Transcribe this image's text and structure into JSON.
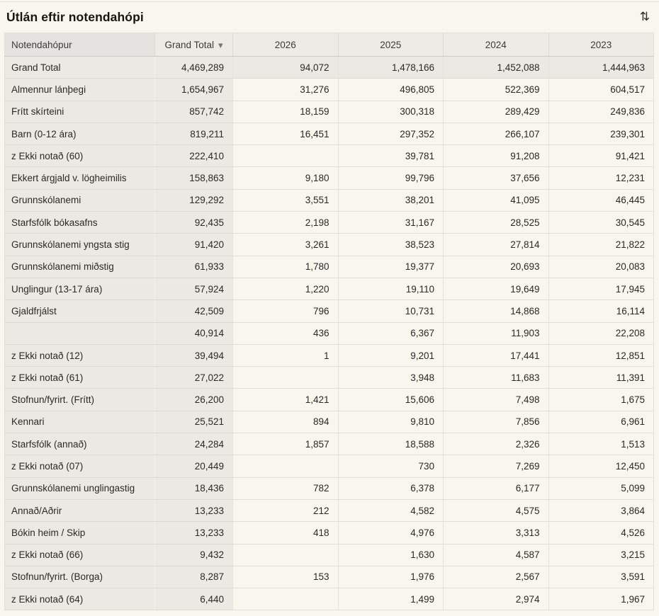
{
  "widget": {
    "title": "Útlán eftir notendahópi"
  },
  "icons": {
    "sort_toggle": "⇅",
    "sort_caret": "▼"
  },
  "table": {
    "headers": [
      "Notendahópur",
      "Grand Total",
      "2026",
      "2025",
      "2024",
      "2023"
    ],
    "sorted_by": "Grand Total",
    "rows": [
      {
        "is_total": true,
        "cells": [
          "Grand Total",
          "4,469,289",
          "94,072",
          "1,478,166",
          "1,452,088",
          "1,444,963"
        ]
      },
      {
        "is_total": false,
        "cells": [
          "Almennur lánþegi",
          "1,654,967",
          "31,276",
          "496,805",
          "522,369",
          "604,517"
        ]
      },
      {
        "is_total": false,
        "cells": [
          "Frítt skírteini",
          "857,742",
          "18,159",
          "300,318",
          "289,429",
          "249,836"
        ]
      },
      {
        "is_total": false,
        "cells": [
          "Barn (0-12 ára)",
          "819,211",
          "16,451",
          "297,352",
          "266,107",
          "239,301"
        ]
      },
      {
        "is_total": false,
        "cells": [
          "z Ekki notað (60)",
          "222,410",
          "",
          "39,781",
          "91,208",
          "91,421"
        ]
      },
      {
        "is_total": false,
        "cells": [
          "Ekkert árgjald v. lögheimilis",
          "158,863",
          "9,180",
          "99,796",
          "37,656",
          "12,231"
        ]
      },
      {
        "is_total": false,
        "cells": [
          "Grunnskólanemi",
          "129,292",
          "3,551",
          "38,201",
          "41,095",
          "46,445"
        ]
      },
      {
        "is_total": false,
        "cells": [
          "Starfsfólk bókasafns",
          "92,435",
          "2,198",
          "31,167",
          "28,525",
          "30,545"
        ]
      },
      {
        "is_total": false,
        "cells": [
          "Grunnskólanemi yngsta stig",
          "91,420",
          "3,261",
          "38,523",
          "27,814",
          "21,822"
        ]
      },
      {
        "is_total": false,
        "cells": [
          "Grunnskólanemi miðstig",
          "61,933",
          "1,780",
          "19,377",
          "20,693",
          "20,083"
        ]
      },
      {
        "is_total": false,
        "cells": [
          "Unglingur (13-17 ára)",
          "57,924",
          "1,220",
          "19,110",
          "19,649",
          "17,945"
        ]
      },
      {
        "is_total": false,
        "cells": [
          "Gjaldfrjálst",
          "42,509",
          "796",
          "10,731",
          "14,868",
          "16,114"
        ]
      },
      {
        "is_total": false,
        "cells": [
          "",
          "40,914",
          "436",
          "6,367",
          "11,903",
          "22,208"
        ]
      },
      {
        "is_total": false,
        "cells": [
          "z Ekki notað (12)",
          "39,494",
          "1",
          "9,201",
          "17,441",
          "12,851"
        ]
      },
      {
        "is_total": false,
        "cells": [
          "z Ekki notað (61)",
          "27,022",
          "",
          "3,948",
          "11,683",
          "11,391"
        ]
      },
      {
        "is_total": false,
        "cells": [
          "Stofnun/fyrirt. (Frítt)",
          "26,200",
          "1,421",
          "15,606",
          "7,498",
          "1,675"
        ]
      },
      {
        "is_total": false,
        "cells": [
          "Kennari",
          "25,521",
          "894",
          "9,810",
          "7,856",
          "6,961"
        ]
      },
      {
        "is_total": false,
        "cells": [
          "Starfsfólk (annað)",
          "24,284",
          "1,857",
          "18,588",
          "2,326",
          "1,513"
        ]
      },
      {
        "is_total": false,
        "cells": [
          "z Ekki notað (07)",
          "20,449",
          "",
          "730",
          "7,269",
          "12,450"
        ]
      },
      {
        "is_total": false,
        "cells": [
          "Grunnskólanemi unglingastig",
          "18,436",
          "782",
          "6,378",
          "6,177",
          "5,099"
        ]
      },
      {
        "is_total": false,
        "cells": [
          "Annað/Aðrir",
          "13,233",
          "212",
          "4,582",
          "4,575",
          "3,864"
        ]
      },
      {
        "is_total": false,
        "cells": [
          "Bókin heim / Skip",
          "13,233",
          "418",
          "4,976",
          "3,313",
          "4,526"
        ]
      },
      {
        "is_total": false,
        "cells": [
          "z Ekki notað (66)",
          "9,432",
          "",
          "1,630",
          "4,587",
          "3,215"
        ]
      },
      {
        "is_total": false,
        "cells": [
          "Stofnun/fyrirt. (Borga)",
          "8,287",
          "153",
          "1,976",
          "2,567",
          "3,591"
        ]
      },
      {
        "is_total": false,
        "cells": [
          "z Ekki notað (64)",
          "6,440",
          "",
          "1,499",
          "2,974",
          "1,967"
        ]
      }
    ]
  },
  "colors": {
    "page_bg": "#f9f6ee",
    "gray_cell_bg": "#ebe9e4",
    "header_bg": "#eeebe6",
    "first_header_bg": "#e5e3df",
    "text": "#2b2925"
  }
}
